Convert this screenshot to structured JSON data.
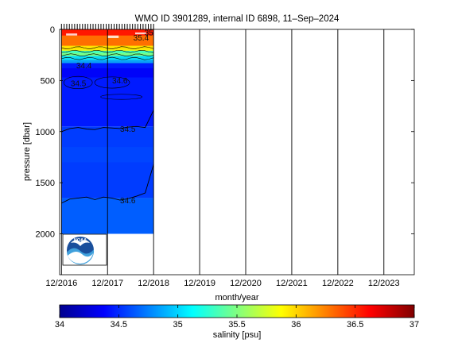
{
  "chart_data": {
    "type": "heatmap",
    "title": "WMO ID 3901289, internal ID 6898, 11–Sep–2024",
    "xlabel": "month/year",
    "ylabel": "pressure [dbar]",
    "x_ticks": [
      "12/2016",
      "12/2017",
      "12/2018",
      "12/2019",
      "12/2020",
      "12/2021",
      "12/2022",
      "12/2023"
    ],
    "x_tick_years": [
      2016.92,
      2017.92,
      2018.92,
      2019.92,
      2020.92,
      2021.92,
      2022.92,
      2023.92
    ],
    "xlim": [
      2016.88,
      2024.58
    ],
    "y_ticks": [
      0,
      500,
      1000,
      1500,
      2000
    ],
    "ylim": [
      2400,
      0
    ],
    "data_extent": {
      "x": [
        2016.92,
        2018.92
      ],
      "pressure_max": 2000
    },
    "grid": "vertical lines at x ticks",
    "colorbar": {
      "label": "salinity [psu]",
      "ticks": [
        34,
        34.5,
        35,
        35.5,
        36,
        36.5,
        37
      ],
      "range": [
        34,
        37
      ],
      "colormap": [
        "#00008f",
        "#0000ff",
        "#0080ff",
        "#00ffff",
        "#80ff80",
        "#ffff00",
        "#ff8000",
        "#ff0000",
        "#800000"
      ]
    },
    "contours": [
      {
        "label": "34.5",
        "pressure_profile": [
          1000,
          970,
          960,
          975,
          980,
          960,
          965,
          970,
          955,
          950,
          960,
          790
        ]
      },
      {
        "label": "34.6",
        "pressure_profile": [
          1700,
          1660,
          1650,
          1640,
          1665,
          1640,
          1650,
          1670,
          1655,
          1630,
          1600,
          1320
        ]
      }
    ],
    "contour_labels": [
      "35.4",
      "34.4",
      "34.5",
      "34.6",
      "35"
    ],
    "layers": [
      {
        "from_p": 0,
        "to_p": 200,
        "salinity": 36.3
      },
      {
        "from_p": 200,
        "to_p": 330,
        "salinity": 35.3
      },
      {
        "from_p": 330,
        "to_p": 950,
        "salinity": 34.45
      },
      {
        "from_p": 950,
        "to_p": 1650,
        "salinity": 34.55
      },
      {
        "from_p": 1650,
        "to_p": 2000,
        "salinity": 34.65
      }
    ]
  },
  "logo": {
    "icon": "noaa-logo",
    "text": "NOAA"
  }
}
